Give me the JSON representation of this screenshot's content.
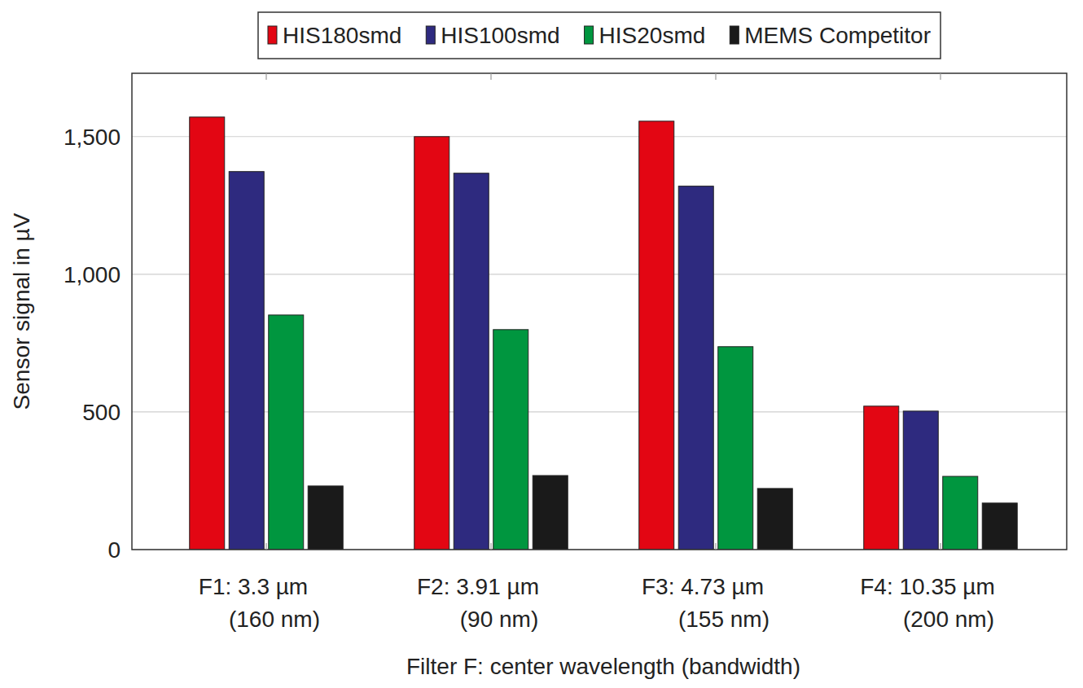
{
  "chart_data": {
    "type": "bar",
    "x_label": "Filter F: center wavelength (bandwidth)",
    "y_label": "Sensor signal in µV",
    "categories": [
      "F1: 3.3 µm\n(160 nm)",
      "F2: 3.91 µm\n(90 nm)",
      "F3: 4.73 µm\n(155 nm)",
      "F4: 10.35 µm\n(200 nm)"
    ],
    "series": [
      {
        "name": "HIS180smd",
        "color": "#e30613",
        "values": [
          1571,
          1500,
          1556,
          521
        ]
      },
      {
        "name": "HIS100smd",
        "color": "#2e2a7f",
        "values": [
          1373,
          1367,
          1320,
          503
        ]
      },
      {
        "name": "HIS20smd",
        "color": "#00963f",
        "values": [
          852,
          799,
          737,
          266
        ]
      },
      {
        "name": "MEMS Competitor",
        "color": "#1a1a1a",
        "values": [
          231,
          269,
          222,
          169
        ]
      }
    ],
    "ylim": [
      0,
      1730
    ],
    "yticks": [
      0,
      500,
      {
        "value": 1000,
        "label": "1,000"
      },
      {
        "value": 1500,
        "label": "1,500"
      }
    ],
    "grid": true,
    "legend": "top"
  }
}
